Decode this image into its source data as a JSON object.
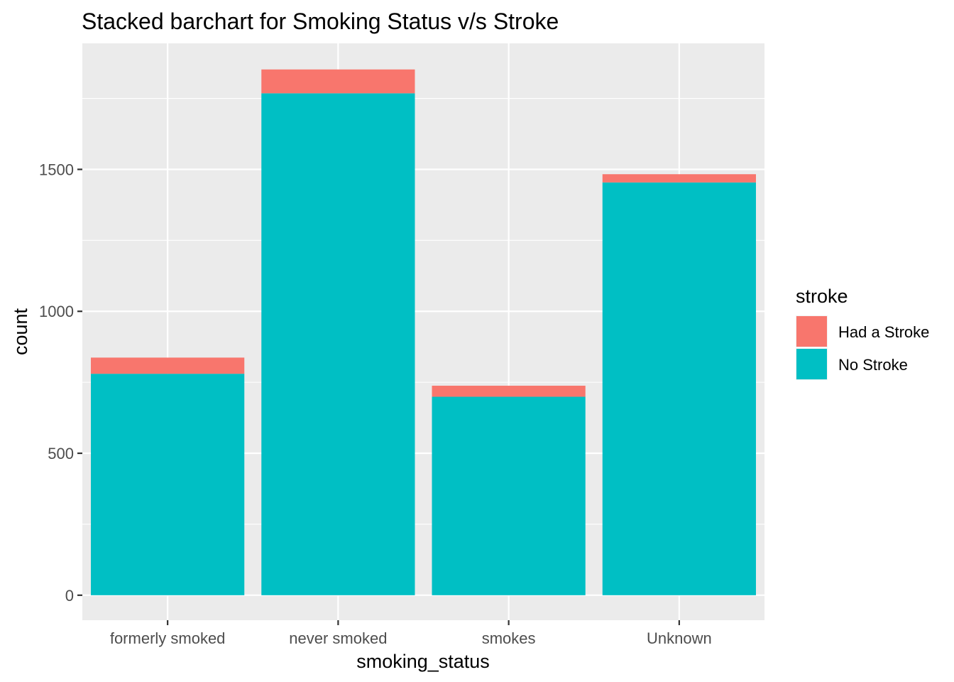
{
  "chart_data": {
    "type": "bar",
    "stacked": true,
    "title": "Stacked barchart for Smoking Status v/s Stroke",
    "xlabel": "smoking_status",
    "ylabel": "count",
    "categories": [
      "formerly smoked",
      "never smoked",
      "smokes",
      "Unknown"
    ],
    "series": [
      {
        "name": "No Stroke",
        "color": "#00BFC4",
        "values": [
          780,
          1768,
          699,
          1454
        ]
      },
      {
        "name": "Had a Stroke",
        "color": "#F8766D",
        "values": [
          57,
          84,
          39,
          29
        ]
      }
    ],
    "yticks": [
      0,
      500,
      1000,
      1500
    ],
    "ytick_labels": [
      "0",
      "500",
      "1000",
      "1500"
    ],
    "ylim": [
      -88,
      1944
    ],
    "grid": true,
    "legend": {
      "title": "stroke",
      "position": "right",
      "entries": [
        "Had a Stroke",
        "No Stroke"
      ]
    },
    "panel_background": "#EBEBEB",
    "grid_color": "#FFFFFF"
  }
}
